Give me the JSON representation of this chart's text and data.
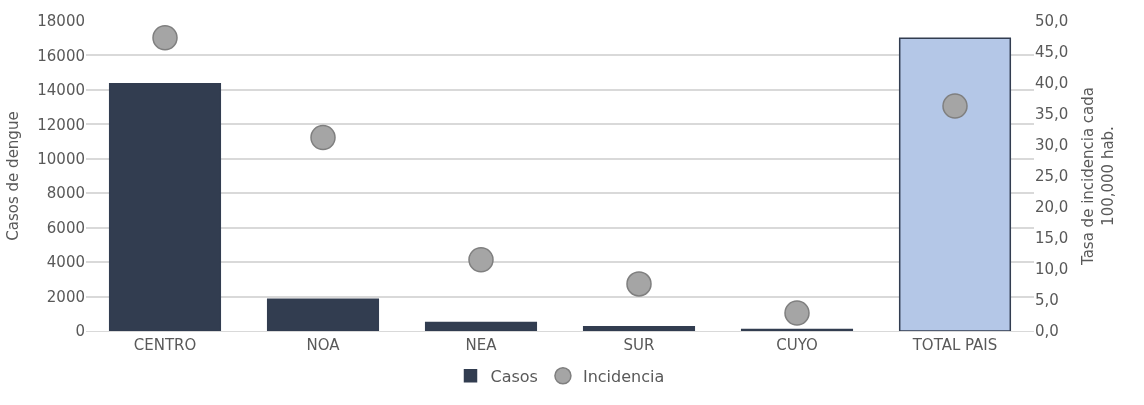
{
  "chart_data": {
    "type": "bar",
    "categories": [
      "CENTRO",
      "NOA",
      "NEA",
      "SUR",
      "CUYO",
      "TOTAL PAIS"
    ],
    "series": [
      {
        "name": "Casos",
        "color": "#323d50",
        "colors": [
          "#323d50",
          "#323d50",
          "#323d50",
          "#323d50",
          "#323d50",
          "#b4c7e7"
        ],
        "values": [
          14350,
          1850,
          500,
          250,
          80,
          17000
        ]
      },
      {
        "name": "Incidencia",
        "type": "scatter",
        "axis": "y2",
        "color": "#a5a5a5",
        "marker": "circle",
        "values": [
          47.3,
          31.2,
          11.5,
          7.6,
          2.9,
          36.3
        ]
      }
    ],
    "ylabel": "Casos de dengue",
    "y2label": "Tasa de incidencia cada\n100,000 hab.",
    "ylim": [
      0,
      18000
    ],
    "yticks": [
      0,
      2000,
      4000,
      6000,
      8000,
      10000,
      12000,
      14000,
      16000,
      18000
    ],
    "y2lim": [
      0,
      50
    ],
    "y2ticks": [
      {
        "value": 0,
        "label": "0,0"
      },
      {
        "value": 5,
        "label": "5,0"
      },
      {
        "value": 10,
        "label": "10,0"
      },
      {
        "value": 15,
        "label": "15,0"
      },
      {
        "value": 20,
        "label": "20,0"
      },
      {
        "value": 25,
        "label": "25,0"
      },
      {
        "value": 30,
        "label": "30,0"
      },
      {
        "value": 35,
        "label": "35,0"
      },
      {
        "value": 40,
        "label": "40,0"
      },
      {
        "value": 45,
        "label": "45,0"
      },
      {
        "value": 50,
        "label": "50,0"
      }
    ],
    "grid": "y",
    "legend": "bottom"
  }
}
